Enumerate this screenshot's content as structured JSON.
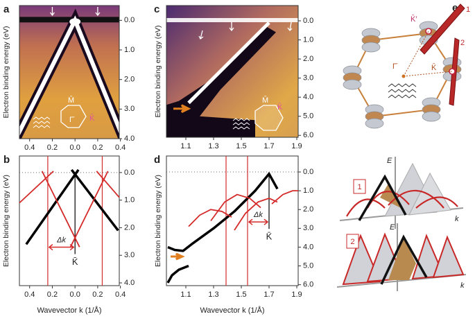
{
  "chart_data": [
    {
      "type": "image",
      "panel": "a",
      "y_axis_label": "Electron binding energy (eV)",
      "xlim": [
        -0.49,
        0.39
      ],
      "xticks": [
        {
          "value": -0.4,
          "label": "0.4"
        },
        {
          "value": -0.2,
          "label": "0.2"
        },
        {
          "value": 0,
          "label": "0.0"
        },
        {
          "value": 0.2,
          "label": "0.2"
        },
        {
          "value": 0.4,
          "label": "0.4"
        }
      ],
      "ylim": [
        -0.5,
        4.0
      ],
      "y_inverted": true,
      "yticks": [
        {
          "value": 0,
          "label": "0.0"
        },
        {
          "value": 1,
          "label": "1.0"
        },
        {
          "value": 2,
          "label": "2.0"
        },
        {
          "value": 3,
          "label": "3.0"
        },
        {
          "value": 4,
          "label": "4.0"
        }
      ],
      "annotations": {
        "m_bar": "M̄",
        "gamma_bar": "Γ̄",
        "k_bar": "K̄"
      }
    },
    {
      "type": "line",
      "panel": "b",
      "y_axis_label": "Electron binding energy (eV)",
      "x_axis_label": "Wavevector k (1/Å)",
      "xlim": [
        -0.49,
        0.39
      ],
      "xticks": [
        {
          "value": -0.4,
          "label": "0.4"
        },
        {
          "value": -0.2,
          "label": "0.2"
        },
        {
          "value": 0,
          "label": "0.0"
        },
        {
          "value": 0.2,
          "label": "0.2"
        },
        {
          "value": 0.4,
          "label": "0.4"
        }
      ],
      "ylim": [
        -0.6,
        4.1
      ],
      "y_inverted": true,
      "yticks": [
        {
          "value": 0,
          "label": "0.0"
        },
        {
          "value": 1,
          "label": "1.0"
        },
        {
          "value": 2,
          "label": "2.0"
        },
        {
          "value": 3,
          "label": "3.0"
        },
        {
          "value": 4,
          "label": "4.0"
        }
      ],
      "reference_line": 0,
      "series": [
        {
          "color": "#000000",
          "x": [
            -0.43,
            0.03
          ],
          "values": [
            2.6,
            -0.1
          ]
        },
        {
          "color": "#000000",
          "x": [
            0.38,
            -0.03
          ],
          "values": [
            2.1,
            -0.1
          ]
        },
        {
          "color": "#d42a2a",
          "x": [
            -0.49,
            -0.19
          ],
          "values": [
            1.1,
            -0.05
          ]
        },
        {
          "color": "#d42a2a",
          "x": [
            -0.29,
            0.04
          ],
          "values": [
            -0.05,
            2.7
          ]
        },
        {
          "color": "#d42a2a",
          "x": [
            0.29,
            -0.04
          ],
          "values": [
            -0.05,
            2.7
          ]
        },
        {
          "color": "#d42a2a",
          "x": [
            0.19,
            0.39
          ],
          "values": [
            -0.05,
            0.9
          ]
        }
      ],
      "vlines": [
        {
          "value": -0.24,
          "color": "#d42a2a"
        },
        {
          "value": 0.24,
          "color": "#d42a2a"
        }
      ],
      "marker_line": {
        "x": 0,
        "color": "#000000"
      },
      "annotations": {
        "delta_k": "Δk",
        "k_bar": "K̄"
      }
    },
    {
      "type": "image",
      "panel": "c",
      "y_axis_label": "Electron binding energy (eV)",
      "xlim": [
        0.96,
        1.91
      ],
      "xticks": [
        1.1,
        1.3,
        1.5,
        1.7,
        1.9
      ],
      "ylim": [
        -0.8,
        6.1
      ],
      "y_inverted": true,
      "yticks": [
        {
          "value": 0,
          "label": "0.0"
        },
        {
          "value": 1,
          "label": "1.0"
        },
        {
          "value": 2,
          "label": "2.0"
        },
        {
          "value": 3,
          "label": "3.0"
        },
        {
          "value": 4,
          "label": "4.0"
        },
        {
          "value": 5,
          "label": "5.0"
        },
        {
          "value": 6,
          "label": "6.0"
        }
      ],
      "annotations": {
        "m_bar": "M̄",
        "k_bar": "K̄"
      }
    },
    {
      "type": "line",
      "panel": "d",
      "y_axis_label": "Electron binding energy (eV)",
      "x_axis_label": "Wavevector k (1/Å)",
      "xlim": [
        0.96,
        1.91
      ],
      "xticks": [
        1.1,
        1.3,
        1.5,
        1.7,
        1.9
      ],
      "ylim": [
        -0.85,
        6.05
      ],
      "y_inverted": true,
      "yticks": [
        {
          "value": 0,
          "label": "0.0"
        },
        {
          "value": 1,
          "label": "1.0"
        },
        {
          "value": 2,
          "label": "2.0"
        },
        {
          "value": 3,
          "label": "3.0"
        },
        {
          "value": 4,
          "label": "4.0"
        },
        {
          "value": 5,
          "label": "5.0"
        },
        {
          "value": 6,
          "label": "6.0"
        }
      ],
      "reference_line": 0,
      "series": [
        {
          "color": "#000000",
          "x": [
            0.97,
            1.02,
            1.08,
            1.15,
            1.3,
            1.45,
            1.6,
            1.7,
            1.76
          ],
          "values": [
            4.0,
            4.15,
            4.2,
            3.8,
            3.0,
            2.1,
            1.0,
            0.1,
            0.9
          ]
        },
        {
          "color": "#000000",
          "x": [
            0.97,
            1.0,
            1.05,
            1.12
          ],
          "values": [
            5.9,
            5.5,
            5.2,
            5.0
          ]
        },
        {
          "color": "#d42a2a",
          "x": [
            1.12,
            1.2,
            1.28,
            1.36,
            1.43
          ],
          "values": [
            2.9,
            2.3,
            2.0,
            2.1,
            2.4
          ]
        },
        {
          "color": "#d42a2a",
          "x": [
            1.28,
            1.38,
            1.47,
            1.56,
            1.64
          ],
          "values": [
            2.6,
            1.6,
            1.2,
            1.4,
            1.9
          ]
        },
        {
          "color": "#d42a2a",
          "x": [
            1.45,
            1.53,
            1.62,
            1.7,
            1.76
          ],
          "values": [
            3.1,
            2.2,
            1.6,
            1.4,
            1.6
          ]
        },
        {
          "color": "#d42a2a",
          "x": [
            1.72,
            1.8,
            1.87,
            1.91
          ],
          "values": [
            1.7,
            1.2,
            1.0,
            1.0
          ]
        }
      ],
      "vlines": [
        {
          "value": 1.39,
          "color": "#d42a2a"
        },
        {
          "value": 1.545,
          "color": "#d42a2a"
        }
      ],
      "marker_line": {
        "x": 1.7,
        "color": "#000000"
      },
      "annotations": {
        "delta_k": "Δk",
        "k_bar": "K̄"
      }
    }
  ],
  "panel_e": {
    "letter": "e",
    "k_prime": "K̄′",
    "plane_1": "1",
    "plane_2": "2",
    "gamma_bar": "Γ̄",
    "k_bar": "K̄",
    "box_1": "1",
    "box_2": "2",
    "e_axis_1": "E",
    "k_axis_1": "k",
    "e_axis_2": "E",
    "k_axis_2": "k"
  }
}
